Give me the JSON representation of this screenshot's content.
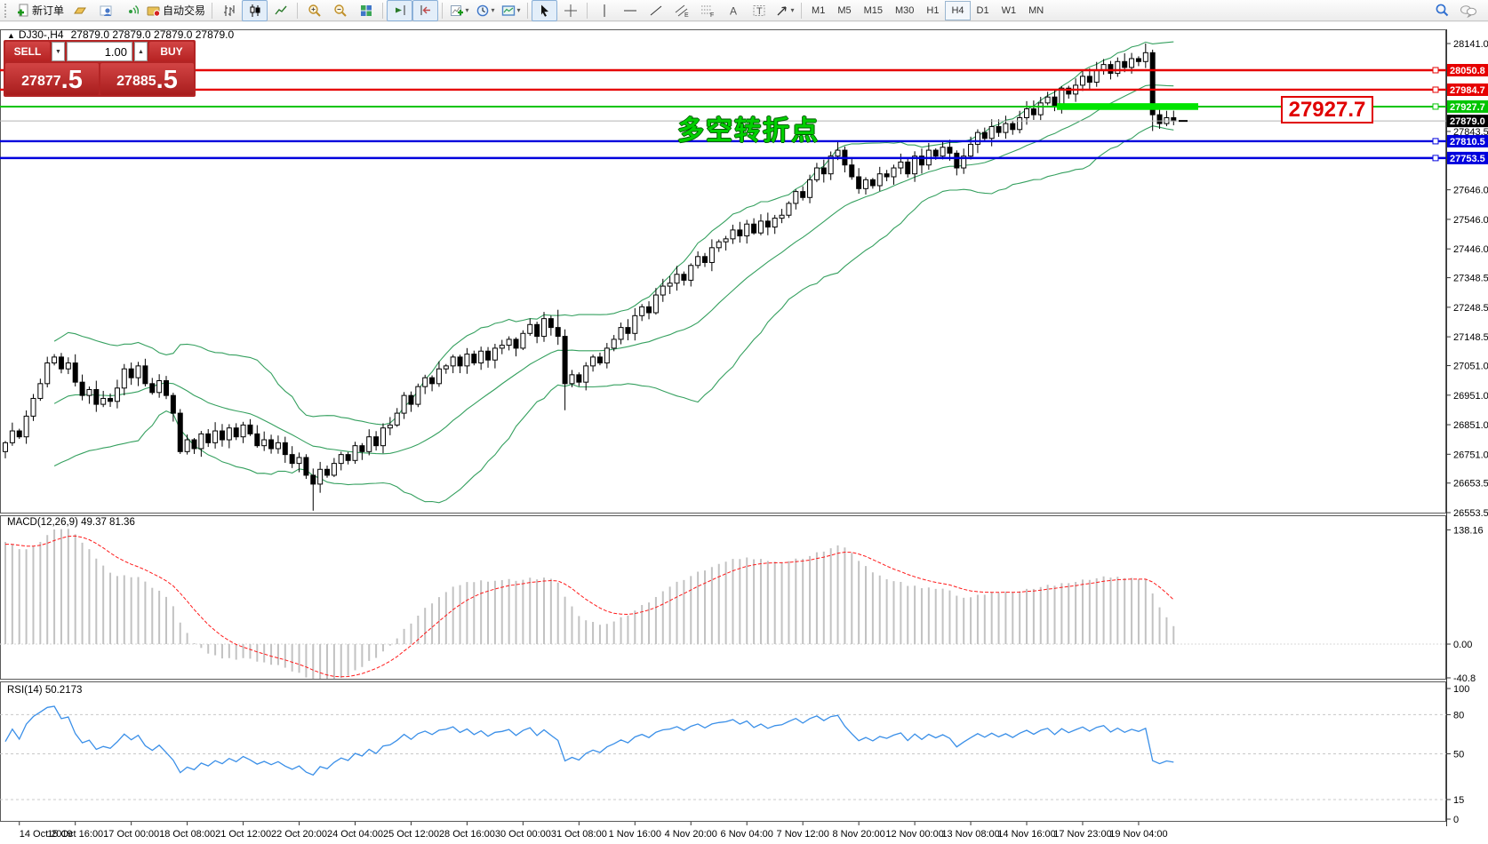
{
  "toolbar": {
    "new_order_label": "新订单",
    "autotrading_label": "自动交易",
    "timeframes": [
      "M1",
      "M5",
      "M15",
      "M30",
      "H1",
      "H4",
      "D1",
      "W1",
      "MN"
    ],
    "active_timeframe": "H4",
    "channel_letter": "E",
    "fibo_letter": "F",
    "text_tool_letter": "A",
    "label_tool_letter": "T",
    "icon_names": [
      "new-order-icon",
      "quotes-icon",
      "profiles-icon",
      "alerts-icon",
      "autotrading-icon",
      "bar-chart-icon",
      "candlestick-icon",
      "line-chart-icon",
      "zoom-in-icon",
      "zoom-out-icon",
      "tile-windows-icon",
      "auto-scroll-icon",
      "chart-shift-icon",
      "indicators-icon",
      "periods-icon",
      "templates-icon",
      "cursor-icon",
      "crosshair-icon",
      "vertical-line-icon",
      "horizontal-line-icon",
      "trendline-icon",
      "channel-icon",
      "fibonacci-icon",
      "text-icon",
      "label-icon",
      "arrows-icon",
      "search-icon",
      "chat-icon"
    ]
  },
  "symbol_header": {
    "collapse": "▲",
    "title": "DJ30-,H4",
    "ohlc": "27879.0 27879.0 27879.0 27879.0"
  },
  "trade_panel": {
    "sell_label": "SELL",
    "buy_label": "BUY",
    "volume": "1.00",
    "sell_price_main": "27877",
    "sell_price_pips": ".5",
    "buy_price_main": "27885",
    "buy_price_pips": ".5"
  },
  "annotation": {
    "text": "多空转折点"
  },
  "price_tag": {
    "value": "27927.7"
  },
  "objects": {
    "hlines": [
      {
        "price": 28050.8,
        "label": "28050.8",
        "color": "#e60000",
        "width": 2.4
      },
      {
        "price": 27984.7,
        "label": "27984.7",
        "color": "#e60000",
        "width": 2.4
      },
      {
        "price": 27927.7,
        "label": "27927.7",
        "color": "#00c400",
        "width": 2.0
      },
      {
        "price": 27810.5,
        "label": "27810.5",
        "color": "#0000dd",
        "width": 2.4
      },
      {
        "price": 27753.5,
        "label": "27753.5",
        "color": "#0000dd",
        "width": 2.4
      }
    ],
    "green_zone_price": 27927.7,
    "current_price": {
      "value": 27879.0,
      "label": "27879.0"
    }
  },
  "price_axis": {
    "ticks": [
      "28141.0",
      "27843.5",
      "27646.0",
      "27546.0",
      "27446.0",
      "27348.5",
      "27248.5",
      "27148.5",
      "27051.0",
      "26951.0",
      "26851.0",
      "26751.0",
      "26653.5",
      "26553.5"
    ]
  },
  "macd": {
    "label": "MACD(12,26,9) 49.37 81.36",
    "ticks": [
      "138.16",
      "0.00",
      "-40.8"
    ],
    "tick_values": [
      138.16,
      0,
      -40.8
    ]
  },
  "rsi": {
    "label": "RSI(14) 50.2173",
    "ticks": [
      "100",
      "80",
      "50",
      "15",
      "0"
    ],
    "tick_values": [
      100,
      80,
      50,
      15,
      0
    ],
    "levels": [
      80,
      50,
      15
    ]
  },
  "time_axis": [
    "14 Oct 2019",
    "15 Oct 16:00",
    "17 Oct 00:00",
    "18 Oct 08:00",
    "21 Oct 12:00",
    "22 Oct 20:00",
    "24 Oct 04:00",
    "25 Oct 12:00",
    "28 Oct 16:00",
    "30 Oct 00:00",
    "31 Oct 08:00",
    "1 Nov 16:00",
    "4 Nov 20:00",
    "6 Nov 04:00",
    "7 Nov 12:00",
    "8 Nov 20:00",
    "12 Nov 00:00",
    "13 Nov 08:00",
    "14 Nov 16:00",
    "17 Nov 23:00",
    "19 Nov 04:00"
  ],
  "chart_data": {
    "type": "candlestick",
    "symbol": "DJ30-",
    "timeframe": "H4",
    "indicators": [
      "Bollinger Bands(20,2)",
      "MACD(12,26,9)",
      "RSI(14)"
    ],
    "price_range": [
      26553.5,
      28141.0
    ],
    "closes": [
      26790,
      26830,
      26810,
      26880,
      26940,
      26990,
      27060,
      27080,
      27040,
      27060,
      26995,
      26950,
      26970,
      26920,
      26940,
      26930,
      26975,
      27040,
      27010,
      27050,
      26990,
      26960,
      27000,
      26950,
      26890,
      26760,
      26800,
      26770,
      26820,
      26790,
      26830,
      26800,
      26840,
      26810,
      26850,
      26820,
      26780,
      26800,
      26770,
      26790,
      26750,
      26720,
      26740,
      26680,
      26650,
      26700,
      26680,
      26720,
      26750,
      26730,
      26780,
      26760,
      26810,
      26780,
      26840,
      26850,
      26890,
      26950,
      26920,
      26980,
      27010,
      26990,
      27040,
      27050,
      27080,
      27050,
      27090,
      27060,
      27100,
      27070,
      27110,
      27120,
      27140,
      27110,
      27160,
      27190,
      27150,
      27210,
      27180,
      27150,
      26990,
      27020,
      26995,
      27050,
      27080,
      27060,
      27110,
      27140,
      27180,
      27160,
      27220,
      27250,
      27230,
      27290,
      27320,
      27330,
      27360,
      27340,
      27390,
      27420,
      27400,
      27450,
      27470,
      27480,
      27510,
      27490,
      27530,
      27500,
      27540,
      27520,
      27550,
      27560,
      27600,
      27640,
      27620,
      27680,
      27720,
      27700,
      27760,
      27780,
      27730,
      27690,
      27650,
      27680,
      27660,
      27700,
      27690,
      27720,
      27740,
      27700,
      27760,
      27730,
      27780,
      27760,
      27790,
      27770,
      27720,
      27760,
      27800,
      27840,
      27820,
      27860,
      27840,
      27870,
      27850,
      27890,
      27920,
      27900,
      27940,
      27960,
      27930,
      27990,
      27970,
      28000,
      28030,
      28010,
      28050,
      28070,
      28040,
      28080,
      28060,
      28090,
      28080,
      28110,
      27900,
      27870,
      27890,
      27879
    ],
    "wick_low": {
      "44": 26560,
      "80": 26900,
      "164": 27845
    },
    "wick_high": {
      "79": 27240,
      "163": 28141
    }
  }
}
